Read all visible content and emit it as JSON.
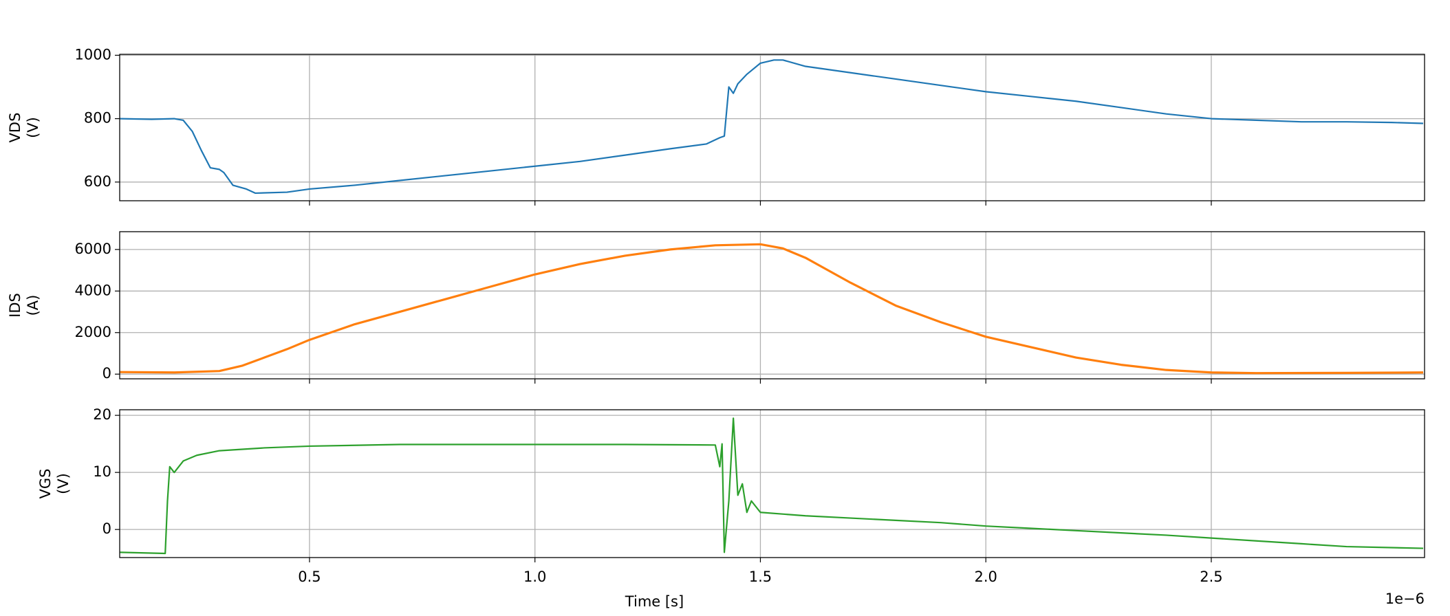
{
  "chart_data": [
    {
      "type": "line",
      "ylabel": [
        "VDS",
        "(V)"
      ],
      "color": "#1f77b4",
      "grid": true,
      "x": [
        8e-08,
        1.5e-07,
        2e-07,
        2.2e-07,
        2.4e-07,
        2.6e-07,
        2.8e-07,
        3e-07,
        3.1e-07,
        3.3e-07,
        3.6e-07,
        3.8e-07,
        4.5e-07,
        5e-07,
        6e-07,
        7e-07,
        8e-07,
        9e-07,
        1e-06,
        1.1e-06,
        1.2e-06,
        1.3e-06,
        1.38e-06,
        1.41e-06,
        1.42e-06,
        1.43e-06,
        1.44e-06,
        1.45e-06,
        1.47e-06,
        1.5e-06,
        1.53e-06,
        1.55e-06,
        1.6e-06,
        1.7e-06,
        1.8e-06,
        1.9e-06,
        2e-06,
        2.1e-06,
        2.2e-06,
        2.3e-06,
        2.4e-06,
        2.5e-06,
        2.6e-06,
        2.7e-06,
        2.8e-06,
        2.9e-06,
        2.97e-06
      ],
      "values": [
        800,
        798,
        800,
        795,
        760,
        700,
        645,
        640,
        630,
        590,
        578,
        565,
        568,
        578,
        590,
        605,
        620,
        635,
        650,
        665,
        685,
        705,
        720,
        740,
        745,
        900,
        880,
        910,
        940,
        975,
        985,
        985,
        965,
        945,
        925,
        905,
        885,
        870,
        855,
        835,
        815,
        800,
        795,
        790,
        790,
        788,
        785
      ],
      "xlim": [
        7.9e-08,
        2.973e-06
      ],
      "xticks": [
        5e-07,
        1e-06,
        1.5e-06,
        2e-06,
        2.5e-06
      ],
      "ylim": [
        541,
        1003
      ],
      "yticks": [
        600,
        800,
        1000
      ]
    },
    {
      "type": "line",
      "ylabel": [
        "IDS",
        "(A)"
      ],
      "color": "#ff7f0e",
      "grid": true,
      "x": [
        8e-08,
        2e-07,
        3e-07,
        3.5e-07,
        4e-07,
        4.5e-07,
        5e-07,
        6e-07,
        7e-07,
        8e-07,
        9e-07,
        1e-06,
        1.1e-06,
        1.2e-06,
        1.3e-06,
        1.4e-06,
        1.5e-06,
        1.55e-06,
        1.6e-06,
        1.7e-06,
        1.8e-06,
        1.9e-06,
        2e-06,
        2.1e-06,
        2.2e-06,
        2.3e-06,
        2.4e-06,
        2.5e-06,
        2.6e-06,
        2.8e-06,
        2.97e-06
      ],
      "values": [
        100,
        80,
        150,
        400,
        800,
        1200,
        1650,
        2400,
        3000,
        3600,
        4200,
        4800,
        5300,
        5700,
        6000,
        6200,
        6250,
        6050,
        5600,
        4400,
        3300,
        2500,
        1800,
        1300,
        800,
        450,
        200,
        80,
        50,
        60,
        80
      ],
      "xlim": [
        7.9e-08,
        2.973e-06
      ],
      "xticks": [
        5e-07,
        1e-06,
        1.5e-06,
        2e-06,
        2.5e-06
      ],
      "ylim": [
        -225,
        6856
      ],
      "yticks": [
        0,
        2000,
        4000,
        6000
      ]
    },
    {
      "type": "line",
      "ylabel": [
        "VGS",
        "(V)"
      ],
      "color": "#2ca02c",
      "grid": true,
      "xlabel": "Time [s]",
      "offset_label": "1e−6",
      "x": [
        8e-08,
        1.8e-07,
        1.85e-07,
        1.9e-07,
        2e-07,
        2.2e-07,
        2.5e-07,
        3e-07,
        4e-07,
        5e-07,
        7e-07,
        1e-06,
        1.2e-06,
        1.4e-06,
        1.41e-06,
        1.415e-06,
        1.42e-06,
        1.43e-06,
        1.44e-06,
        1.45e-06,
        1.46e-06,
        1.47e-06,
        1.48e-06,
        1.5e-06,
        1.6e-06,
        1.7e-06,
        1.8e-06,
        1.9e-06,
        2e-06,
        2.1e-06,
        2.2e-06,
        2.3e-06,
        2.4e-06,
        2.5e-06,
        2.6e-06,
        2.7e-06,
        2.8e-06,
        2.97e-06
      ],
      "values": [
        -4,
        -4.2,
        5,
        11,
        10,
        12,
        13,
        13.8,
        14.3,
        14.6,
        14.9,
        14.9,
        14.9,
        14.8,
        11,
        15,
        -4,
        5,
        19.5,
        6,
        8,
        3,
        5,
        3,
        2.4,
        2,
        1.6,
        1.2,
        0.6,
        0.2,
        -0.2,
        -0.6,
        -1,
        -1.5,
        -2,
        -2.5,
        -3,
        -3.3
      ],
      "xlim": [
        7.9e-08,
        2.973e-06
      ],
      "xticks": [
        {
          "value": 5e-07,
          "label": "0.5"
        },
        {
          "value": 1e-06,
          "label": "1.0"
        },
        {
          "value": 1.5e-06,
          "label": "1.5"
        },
        {
          "value": 2e-06,
          "label": "2.0"
        },
        {
          "value": 2.5e-06,
          "label": "2.5"
        }
      ],
      "ylim": [
        -4.92,
        20.98
      ],
      "yticks": [
        0,
        10,
        20
      ]
    }
  ]
}
